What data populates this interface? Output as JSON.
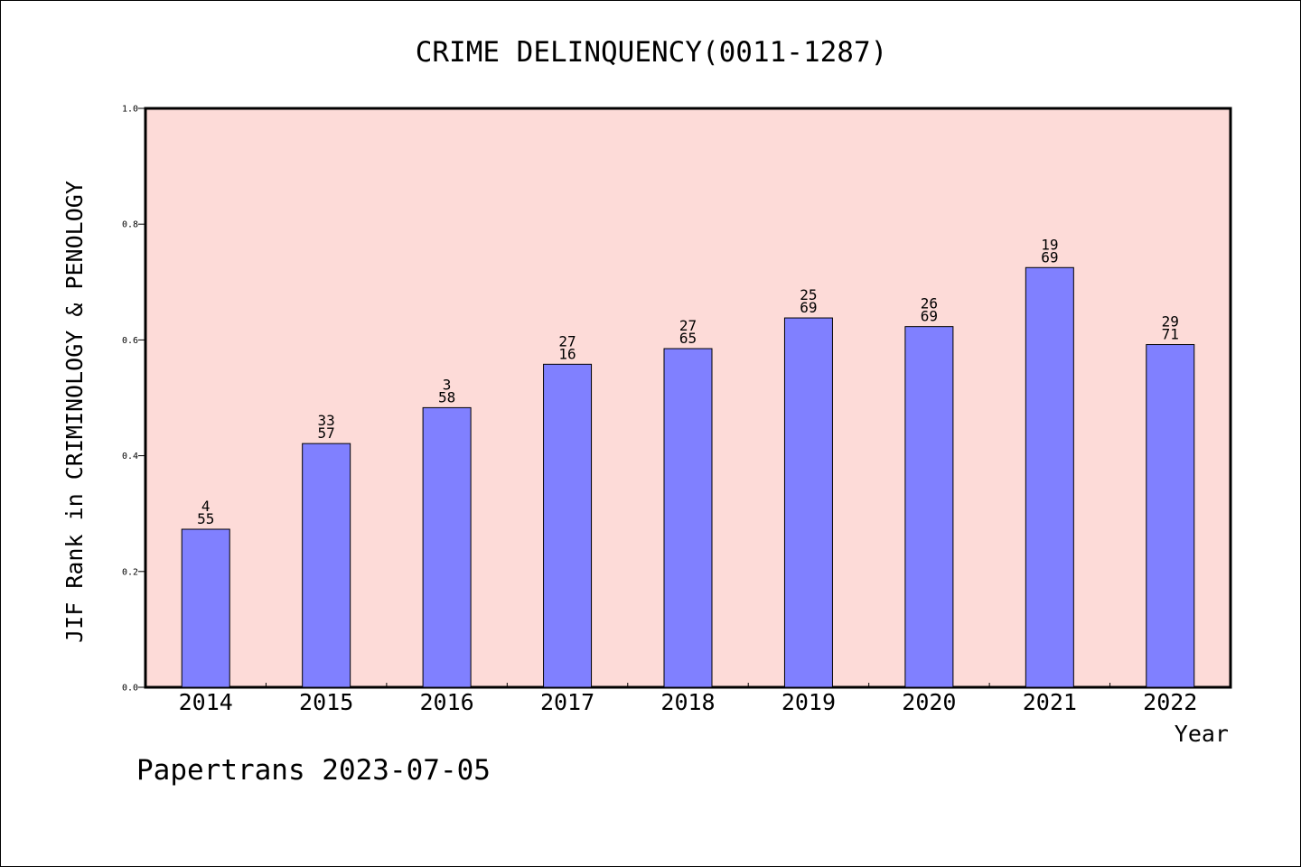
{
  "footer": "Papertrans 2023-07-05",
  "chart_data": {
    "type": "bar",
    "title": "CRIME DELINQUENCY(0011-1287)",
    "xlabel": "Year",
    "ylabel": "JIF Rank in CRIMINOLOGY & PENOLOGY",
    "ylim": [
      0,
      1.0
    ],
    "yticks": [
      "0.0",
      "0.2",
      "0.4",
      "0.6",
      "0.8",
      "1.0"
    ],
    "grid": false,
    "categories": [
      "2014",
      "2015",
      "2016",
      "2017",
      "2018",
      "2019",
      "2020",
      "2021",
      "2022"
    ],
    "values": [
      0.273,
      0.421,
      0.483,
      0.558,
      0.585,
      0.638,
      0.623,
      0.725,
      0.592
    ],
    "label_top": [
      "4",
      "33",
      "3",
      "27",
      "27",
      "25",
      "26",
      "19",
      "29"
    ],
    "label_bottom": [
      "55",
      "57",
      "58",
      "16",
      "65",
      "69",
      "69",
      "69",
      "71"
    ],
    "colors": {
      "plot_bg": "#fddbd8",
      "bar": "#8080ff",
      "bar_edge": "#000000"
    }
  }
}
